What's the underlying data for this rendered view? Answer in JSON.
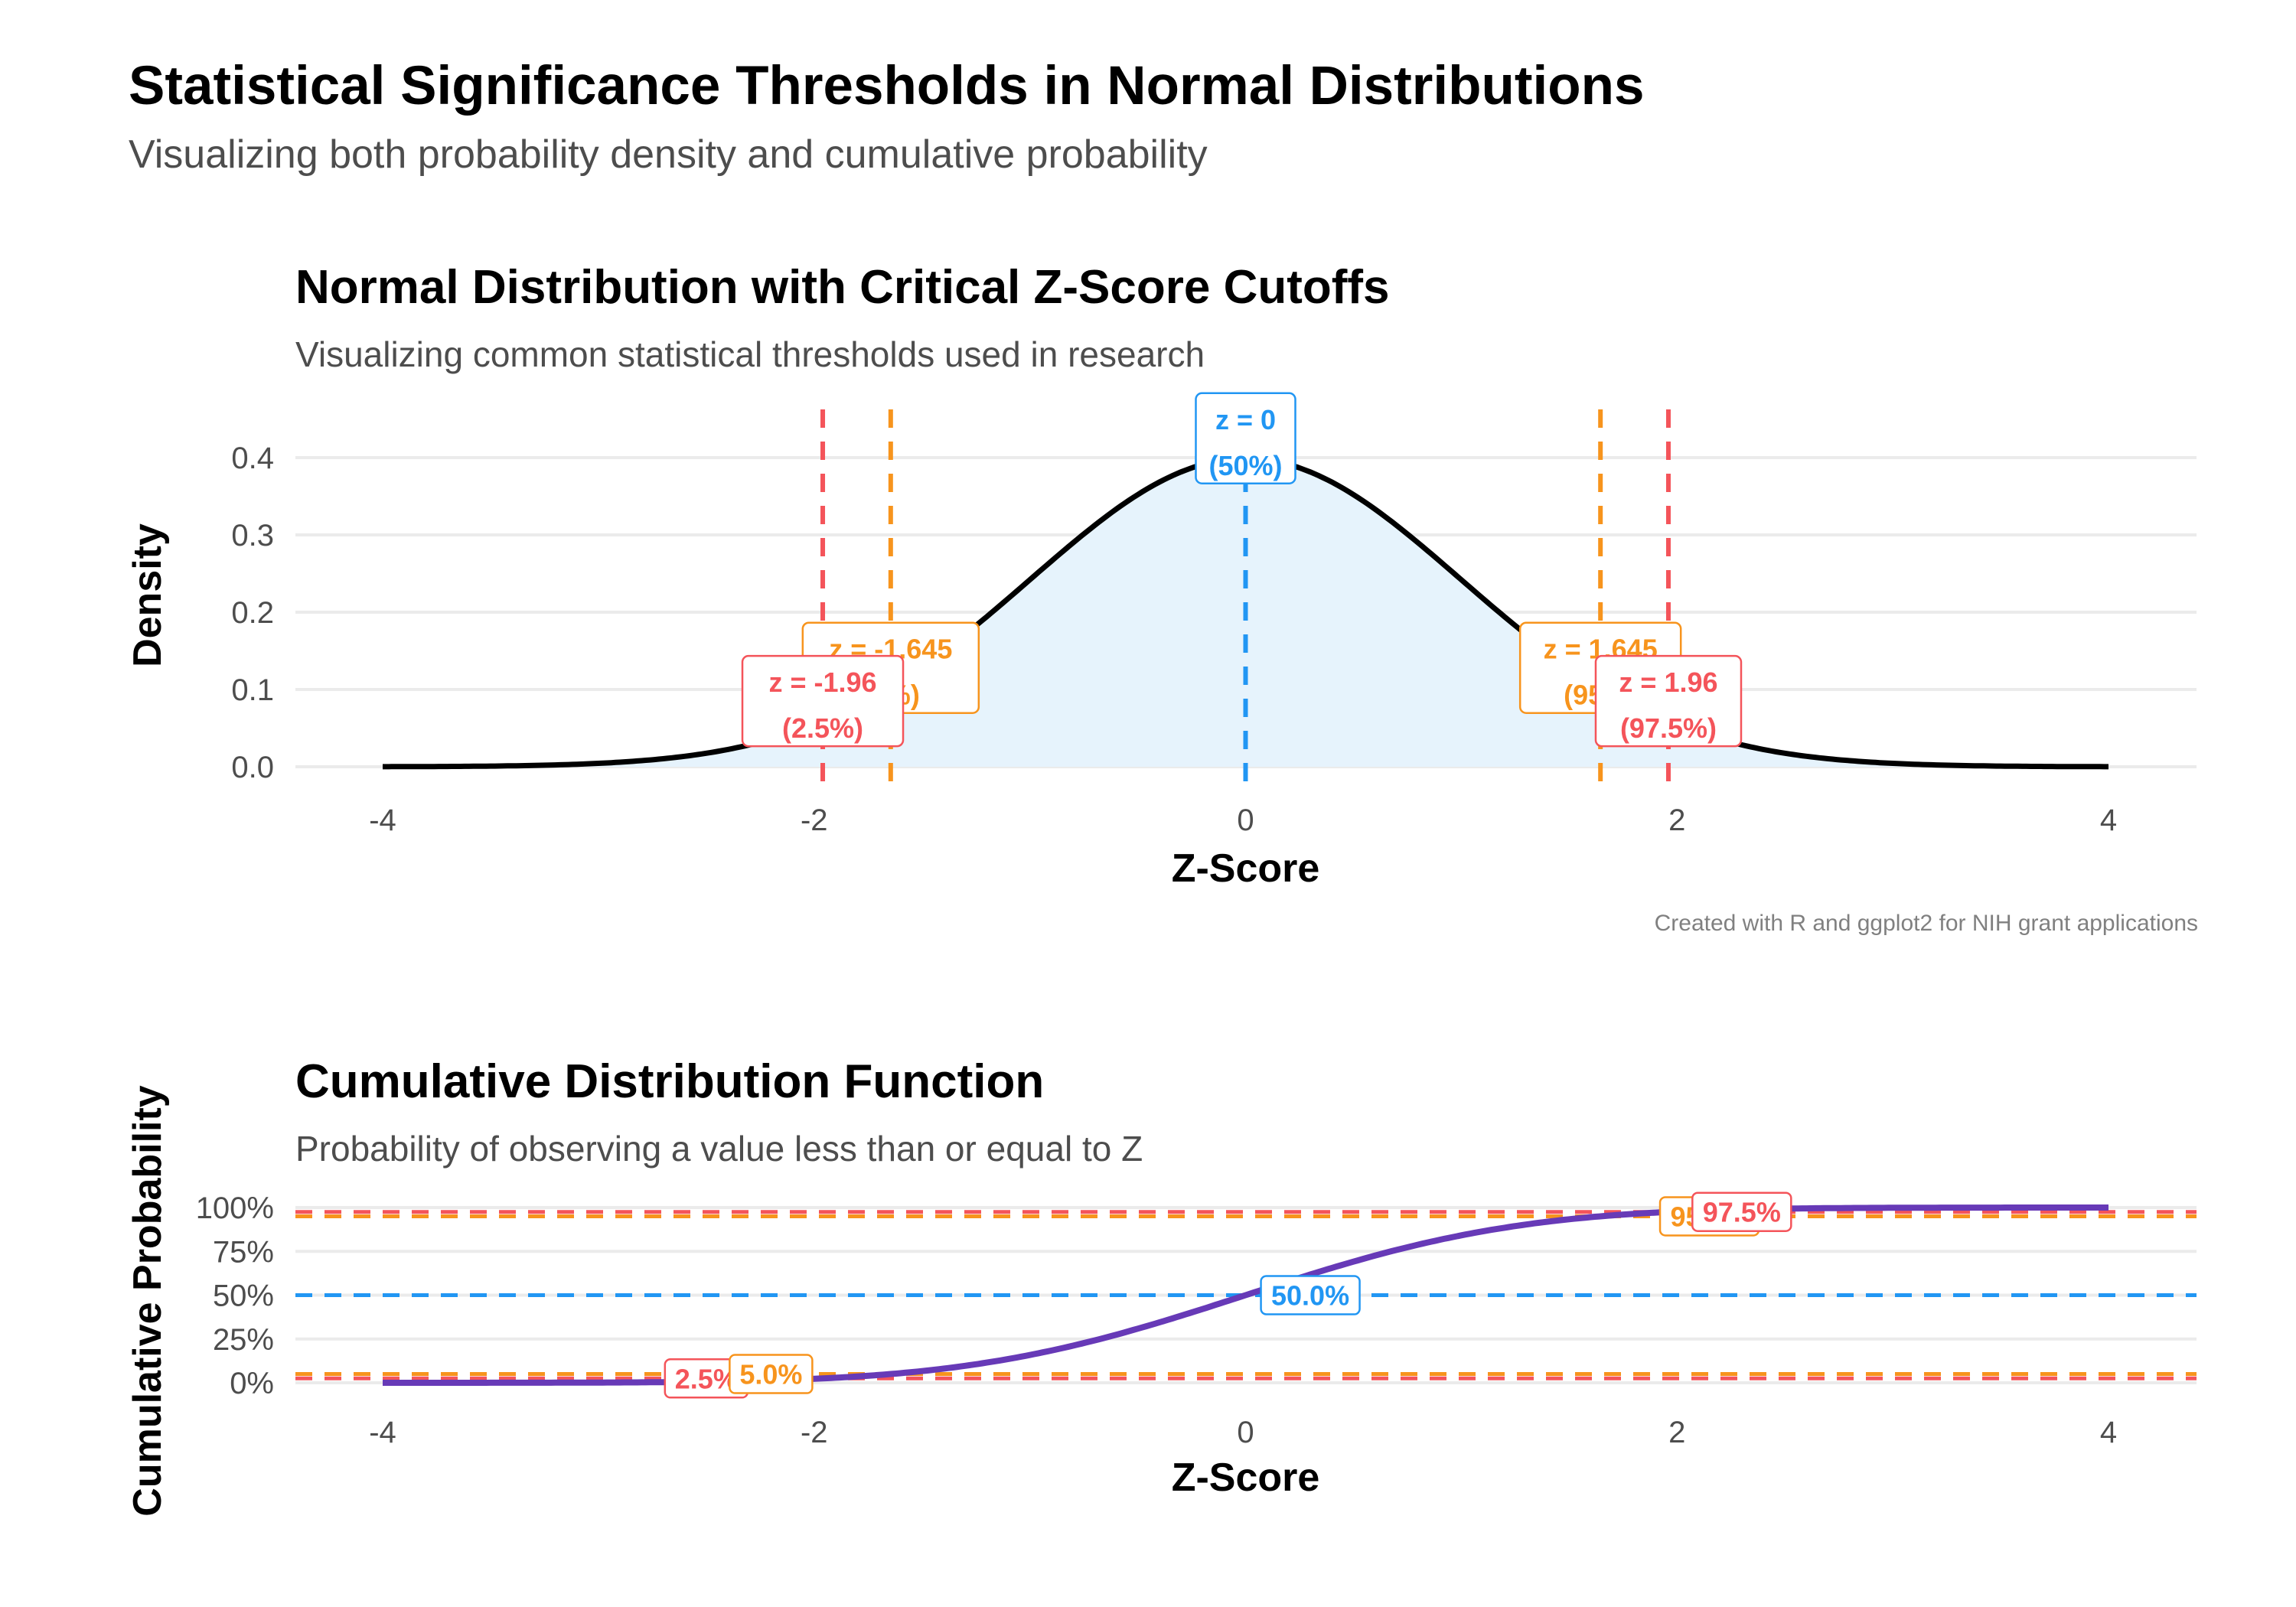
{
  "figure": {
    "title": "Statistical Significance Thresholds in Normal Distributions",
    "subtitle": "Visualizing both probability density and cumulative probability"
  },
  "colors": {
    "red": "#F4545A",
    "orange": "#F7941D",
    "blue": "#2196F3",
    "curve": "#000000",
    "fill": "#E6F3FC",
    "cdf": "#673AB7",
    "grid": "#EBEBEB"
  },
  "chart_data": [
    {
      "type": "area",
      "title": "Normal Distribution with Critical Z-Score Cutoffs",
      "subtitle": "Visualizing common statistical thresholds used in research",
      "xlabel": "Z-Score",
      "ylabel": "Density",
      "caption": "Created with R and ggplot2 for NIH grant applications",
      "xlim": [
        -4,
        4
      ],
      "ylim": [
        0,
        0.4
      ],
      "x_ticks": [
        -4,
        -2,
        0,
        2,
        4
      ],
      "y_ticks": [
        0.0,
        0.1,
        0.2,
        0.3,
        0.4
      ],
      "y_tick_labels": [
        "0.0",
        "0.1",
        "0.2",
        "0.3",
        "0.4"
      ],
      "curve": "standard normal density N(0,1)",
      "shaded": true,
      "grid": "horizontal",
      "cutoffs": [
        {
          "z": -1.96,
          "label1": "z = -1.96",
          "label2": "(2.5%)",
          "color": "red",
          "label_y": 0.085
        },
        {
          "z": -1.645,
          "label1": "z = -1.645",
          "label2": "(5%)",
          "color": "orange",
          "label_y": 0.128
        },
        {
          "z": 0,
          "label1": "z = 0",
          "label2": "(50%)",
          "color": "blue",
          "label_y": 0.425
        },
        {
          "z": 1.645,
          "label1": "z = 1.645",
          "label2": "(95%)",
          "color": "orange",
          "label_y": 0.128
        },
        {
          "z": 1.96,
          "label1": "z = 1.96",
          "label2": "(97.5%)",
          "color": "red",
          "label_y": 0.085
        }
      ]
    },
    {
      "type": "line",
      "title": "Cumulative Distribution Function",
      "subtitle": "Probability of observing a value less than or equal to Z",
      "xlabel": "Z-Score",
      "ylabel": "Cumulative Probability",
      "xlim": [
        -4,
        4
      ],
      "ylim": [
        0,
        1
      ],
      "x_ticks": [
        -4,
        -2,
        0,
        2,
        4
      ],
      "y_ticks": [
        0,
        0.25,
        0.5,
        0.75,
        1
      ],
      "y_tick_labels": [
        "0%",
        "25%",
        "50%",
        "75%",
        "100%"
      ],
      "curve": "standard normal CDF",
      "grid": "horizontal",
      "hlines": [
        {
          "p": 0.025,
          "color": "red"
        },
        {
          "p": 0.05,
          "color": "orange"
        },
        {
          "p": 0.5,
          "color": "blue"
        },
        {
          "p": 0.95,
          "color": "orange"
        },
        {
          "p": 0.975,
          "color": "red"
        }
      ],
      "labels": [
        {
          "text": "2.5%",
          "z": -2.5,
          "p": 0.025,
          "color": "red"
        },
        {
          "text": "5.0%",
          "z": -2.2,
          "p": 0.05,
          "color": "orange"
        },
        {
          "text": "50.0%",
          "z": 0.3,
          "p": 0.5,
          "color": "blue"
        },
        {
          "text": "95.0%",
          "z": 2.15,
          "p": 0.95,
          "color": "orange"
        },
        {
          "text": "97.5%",
          "z": 2.3,
          "p": 0.975,
          "color": "red"
        }
      ]
    }
  ]
}
